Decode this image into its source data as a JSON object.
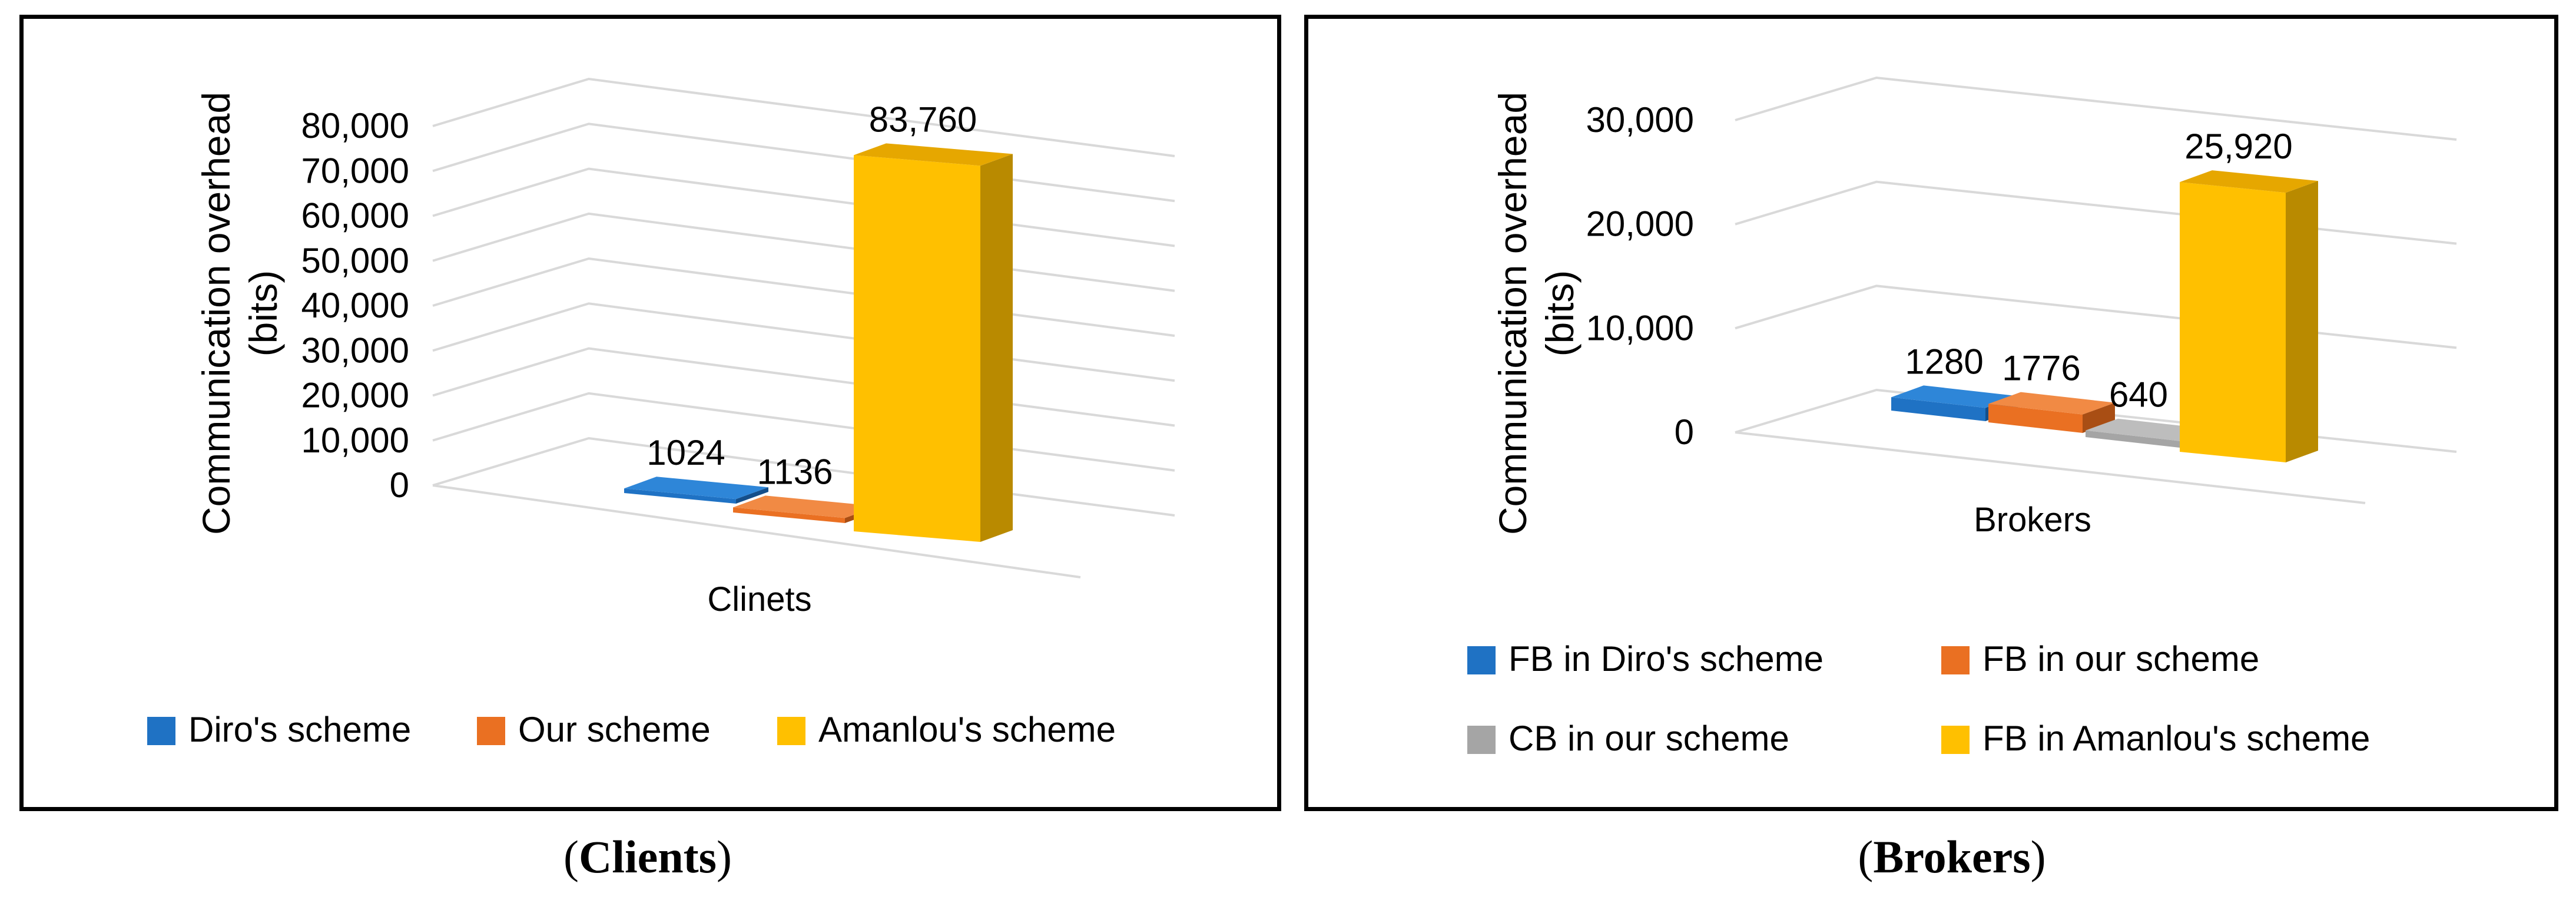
{
  "figure": {
    "captions": [
      {
        "open": "(",
        "label": "Clients",
        "close": ")"
      },
      {
        "open": "(",
        "label": "Brokers",
        "close": ")"
      }
    ]
  },
  "chart_data": [
    {
      "type": "bar",
      "ylabel_line1": "Communication overhead",
      "ylabel_line2": "(bits)",
      "xlabel": "Clinets",
      "ylim": [
        0,
        80000
      ],
      "yticks": [
        "0",
        "10,000",
        "20,000",
        "30,000",
        "40,000",
        "50,000",
        "60,000",
        "70,000",
        "80,000"
      ],
      "yticks_values": [
        0,
        10000,
        20000,
        30000,
        40000,
        50000,
        60000,
        70000,
        80000
      ],
      "legend_position": "bottom",
      "series": [
        {
          "name": "Diro's scheme",
          "value": 1024,
          "label": "1024",
          "color": "#1F72C4",
          "side": "#154F8A",
          "top": "#2E86D8"
        },
        {
          "name": "Our scheme",
          "value": 1136,
          "label": "1136",
          "color": "#EA7022",
          "side": "#A94E14",
          "top": "#F18A44"
        },
        {
          "name": "Amanlou's scheme",
          "value": 83760,
          "label": "83,760",
          "color": "#FFC000",
          "side": "#B98A00",
          "top": "#E6A700"
        }
      ]
    },
    {
      "type": "bar",
      "ylabel_line1": "Communication overhead",
      "ylabel_line2": "(bits)",
      "xlabel": "Brokers",
      "ylim": [
        0,
        30000
      ],
      "yticks": [
        "0",
        "10,000",
        "20,000",
        "30,000"
      ],
      "yticks_values": [
        0,
        10000,
        20000,
        30000
      ],
      "legend_position": "bottom",
      "series": [
        {
          "name": "FB in Diro's scheme",
          "value": 1280,
          "label": "1280",
          "color": "#1F72C4",
          "side": "#154F8A",
          "top": "#2E86D8"
        },
        {
          "name": "FB in our scheme",
          "value": 1776,
          "label": "1776",
          "color": "#EA7022",
          "side": "#A94E14",
          "top": "#F18A44"
        },
        {
          "name": "CB in our scheme",
          "value": 640,
          "label": "640",
          "color": "#A5A5A5",
          "side": "#737373",
          "top": "#BDBDBD"
        },
        {
          "name": "FB in Amanlou's scheme",
          "value": 25920,
          "label": "25,920",
          "color": "#FFC000",
          "side": "#B98A00",
          "top": "#E6A700"
        }
      ]
    }
  ]
}
